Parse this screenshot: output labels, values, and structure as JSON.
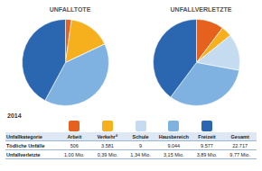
{
  "chart_data": [
    {
      "type": "pie",
      "title": "UNFALLTOTE",
      "categories": [
        "Arbeit",
        "Verkehr",
        "Schule",
        "Hausbereich",
        "Freizeit"
      ],
      "values": [
        506,
        3581,
        9,
        9044,
        9577
      ],
      "colors": [
        "#e5611d",
        "#f6b01e",
        "#c5dcf0",
        "#7fb2e0",
        "#2b67b1"
      ]
    },
    {
      "type": "pie",
      "title": "UNFALLVERLETZTE",
      "categories": [
        "Arbeit",
        "Verkehr",
        "Schule",
        "Hausbereich",
        "Freizeit"
      ],
      "values": [
        1.0,
        0.39,
        1.34,
        3.15,
        3.89
      ],
      "colors": [
        "#e5611d",
        "#f6b01e",
        "#c5dcf0",
        "#7fb2e0",
        "#2b67b1"
      ]
    }
  ],
  "year": "2014",
  "table": {
    "header": [
      "Unfallkategorie",
      "Arbeit",
      "Verkehr¹⁾",
      "Schule",
      "Hausbereich",
      "Freizeit",
      "Gesamt"
    ],
    "rows": [
      [
        "Tödliche Unfälle",
        "506",
        "3.581",
        "9",
        "9.044",
        "9.577",
        "22.717"
      ],
      [
        "Unfallverletzte",
        "1,00 Mio.",
        "0,39 Mio.",
        "1,34 Mio.",
        "3,15 Mio.",
        "3,89 Mio.",
        "9,77 Mio."
      ]
    ]
  }
}
